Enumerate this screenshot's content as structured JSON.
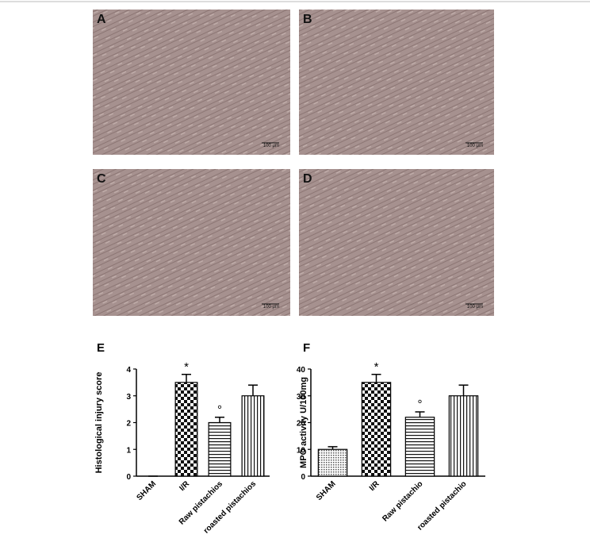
{
  "images": [
    {
      "label": "A",
      "scale_label": "100 μm"
    },
    {
      "label": "B",
      "scale_label": "100 μm"
    },
    {
      "label": "C",
      "scale_label": "100 μm"
    },
    {
      "label": "D",
      "scale_label": "100 μm"
    }
  ],
  "chart_data": [
    {
      "type": "bar",
      "panel": "E",
      "ylabel": "Histological injury score",
      "categories": [
        "SHAM",
        "I/R",
        "Raw pistachios",
        "roasted pistachios"
      ],
      "values": [
        0,
        3.5,
        2.0,
        3.0
      ],
      "errors": [
        0,
        0.3,
        0.2,
        0.4
      ],
      "markers": [
        null,
        "*",
        "°",
        null
      ],
      "patterns": [
        "dots",
        "checker",
        "hlines",
        "vlines"
      ],
      "ylim": [
        0,
        4
      ],
      "yticks": [
        0,
        1,
        2,
        3,
        4
      ]
    },
    {
      "type": "bar",
      "panel": "F",
      "ylabel": "MPO activity U/100mg",
      "categories": [
        "SHAM",
        "I/R",
        "Raw pistachio",
        "roasted pistachio"
      ],
      "values": [
        10,
        35,
        22,
        30
      ],
      "errors": [
        1,
        3,
        2,
        4
      ],
      "markers": [
        null,
        "*",
        "°",
        null
      ],
      "patterns": [
        "dots",
        "checker",
        "hlines",
        "vlines"
      ],
      "ylim": [
        0,
        40
      ],
      "yticks": [
        0,
        10,
        20,
        30,
        40
      ]
    }
  ]
}
